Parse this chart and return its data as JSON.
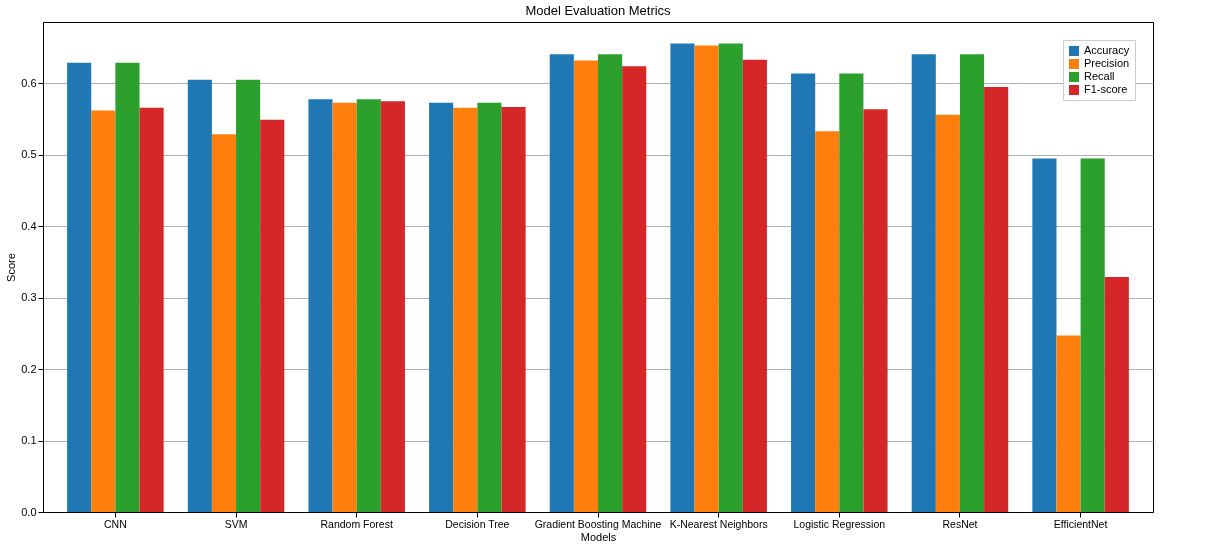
{
  "chart_data": {
    "type": "bar",
    "title": "Model Evaluation Metrics",
    "xlabel": "Models",
    "ylabel": "Score",
    "categories": [
      "CNN",
      "SVM",
      "Random Forest",
      "Decision Tree",
      "Gradient Boosting Machine",
      "K-Nearest Neighbors",
      "Logistic Regression",
      "ResNet",
      "EfficientNet"
    ],
    "series": [
      {
        "name": "Accuracy",
        "color": "#1f77b4",
        "values": [
          0.629,
          0.605,
          0.578,
          0.573,
          0.641,
          0.656,
          0.614,
          0.641,
          0.495
        ]
      },
      {
        "name": "Precision",
        "color": "#ff7f0e",
        "values": [
          0.562,
          0.529,
          0.573,
          0.566,
          0.632,
          0.653,
          0.533,
          0.556,
          0.247
        ]
      },
      {
        "name": "Recall",
        "color": "#2ca02c",
        "values": [
          0.629,
          0.605,
          0.578,
          0.573,
          0.641,
          0.656,
          0.614,
          0.641,
          0.495
        ]
      },
      {
        "name": "F1-score",
        "color": "#d62728",
        "values": [
          0.566,
          0.549,
          0.575,
          0.567,
          0.624,
          0.633,
          0.564,
          0.595,
          0.329
        ]
      }
    ],
    "ylim": [
      0,
      0.686
    ],
    "yticks": [
      {
        "value": 0,
        "label": "0.0"
      },
      {
        "value": 0.1,
        "label": "0.1"
      },
      {
        "value": 0.2,
        "label": "0.2"
      },
      {
        "value": 0.3,
        "label": "0.3"
      },
      {
        "value": 0.4,
        "label": "0.4"
      },
      {
        "value": 0.5,
        "label": "0.5"
      },
      {
        "value": 0.6,
        "label": "0.6"
      }
    ],
    "grid": "y",
    "legend": "top right"
  }
}
